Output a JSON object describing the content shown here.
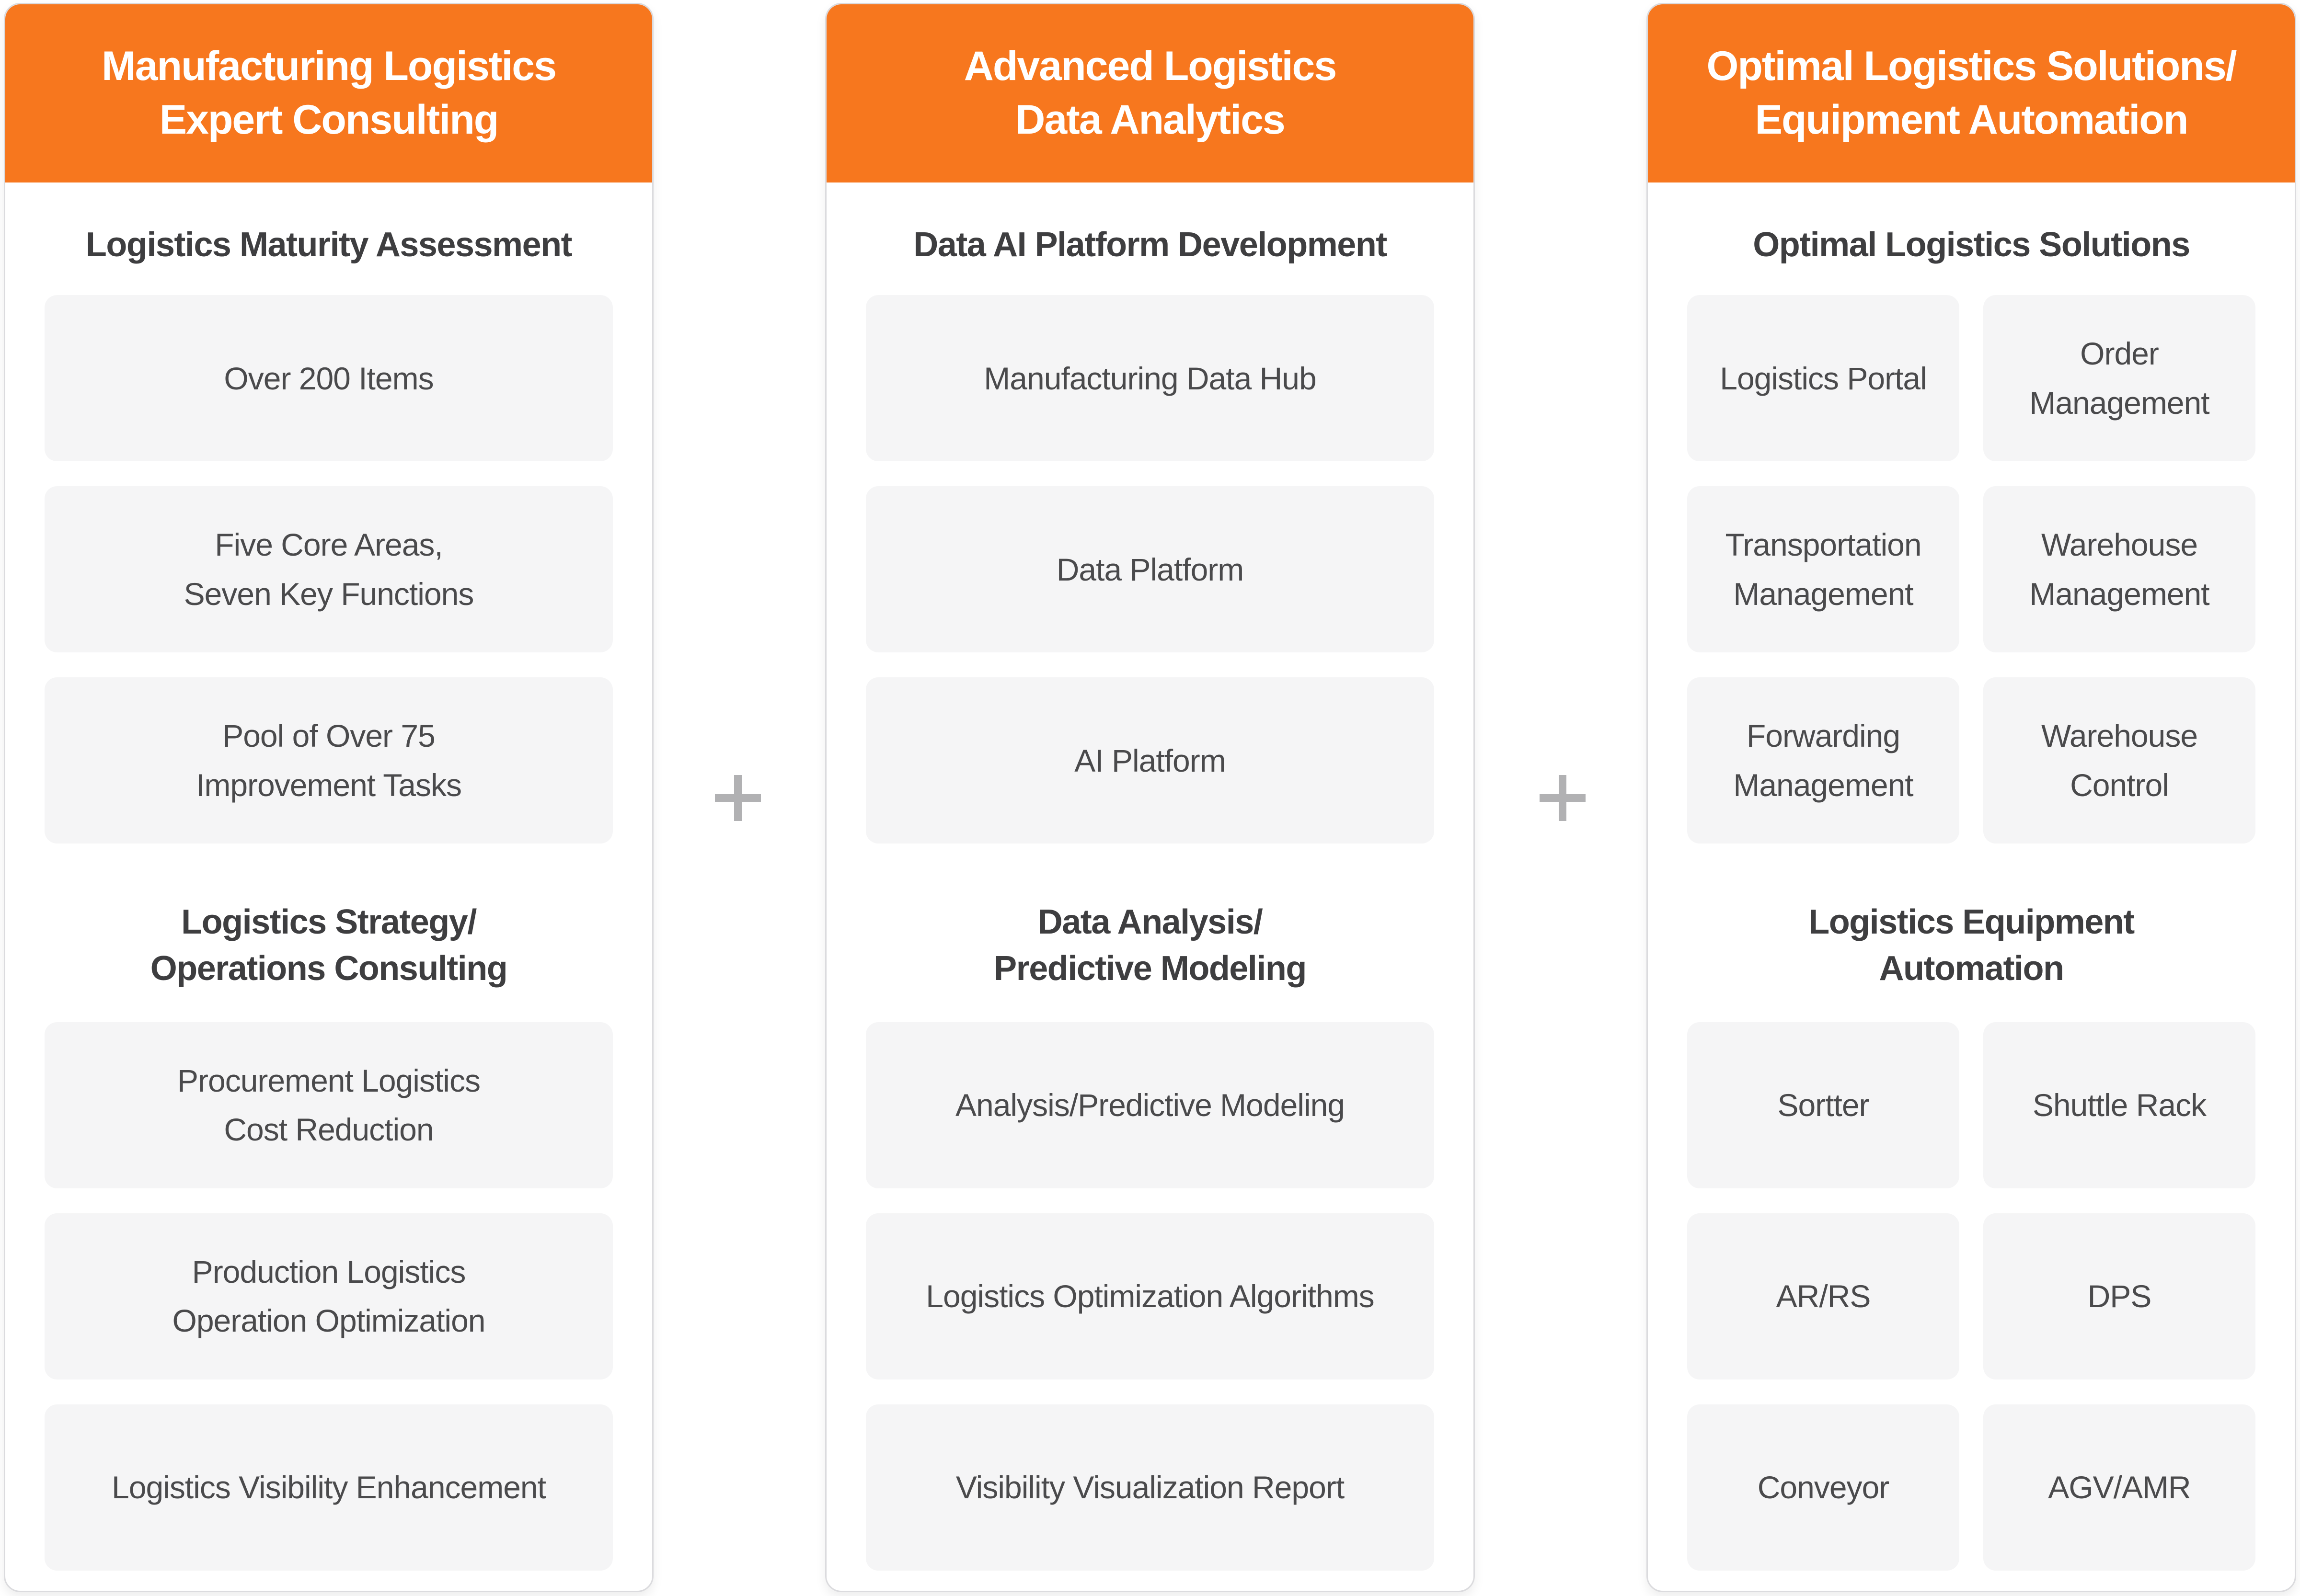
{
  "page": {
    "background": "#FFFFFF"
  },
  "theme": {
    "accent_orange": "#F7771E",
    "header_text_color": "#FFFFFF",
    "section_title_color": "#3E3E40",
    "box_background": "#F5F5F6",
    "box_text_color": "#4A4A4C",
    "card_border_color": "#DBDBDE",
    "plus_color": "#B1B1B3"
  },
  "separators": [
    {
      "symbol": "+"
    },
    {
      "symbol": "+"
    }
  ],
  "columns": [
    {
      "header": "Manufacturing Logistics\nExpert Consulting",
      "sections": [
        {
          "title": "Logistics Maturity Assessment",
          "layout": "list",
          "items": [
            "Over 200 Items",
            "Five Core Areas,\nSeven Key Functions",
            "Pool of Over 75\nImprovement Tasks"
          ]
        },
        {
          "title": "Logistics Strategy/\nOperations Consulting",
          "layout": "list",
          "items": [
            "Procurement Logistics\nCost Reduction",
            "Production Logistics\nOperation Optimization",
            "Logistics Visibility Enhancement"
          ]
        }
      ]
    },
    {
      "header": "Advanced Logistics\nData Analytics",
      "sections": [
        {
          "title": "Data AI Platform Development",
          "layout": "list",
          "items": [
            "Manufacturing Data Hub",
            "Data Platform",
            "AI Platform"
          ]
        },
        {
          "title": "Data Analysis/\nPredictive Modeling",
          "layout": "list",
          "items": [
            "Analysis/Predictive Modeling",
            "Logistics Optimization Algorithms",
            "Visibility Visualization Report"
          ]
        }
      ]
    },
    {
      "header": "Optimal Logistics Solutions/\nEquipment Automation",
      "sections": [
        {
          "title": "Optimal Logistics Solutions",
          "layout": "grid",
          "items": [
            "Logistics Portal",
            "Order Management",
            "Transportation Management",
            "Warehouse Management",
            "Forwarding Management",
            "Warehouse Control"
          ]
        },
        {
          "title": "Logistics Equipment\nAutomation",
          "layout": "grid",
          "items": [
            "Sortter",
            "Shuttle Rack",
            "AR/RS",
            "DPS",
            "Conveyor",
            "AGV/AMR"
          ]
        }
      ]
    }
  ]
}
